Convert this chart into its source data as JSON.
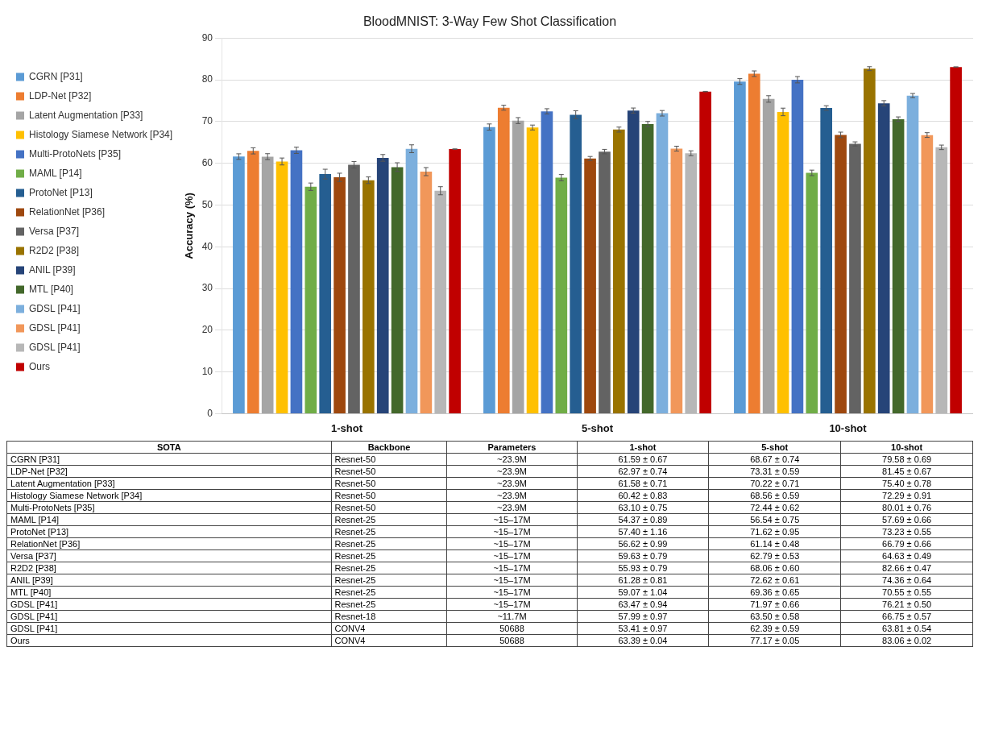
{
  "chart_data": {
    "type": "bar",
    "title": "BloodMNIST: 3-Way Few Shot Classification",
    "ylabel": "Accuracy (%)",
    "categories": [
      "1-shot",
      "5-shot",
      "10-shot"
    ],
    "ylim": [
      0,
      90
    ],
    "yticks": [
      0,
      10,
      20,
      30,
      40,
      50,
      60,
      70,
      80,
      90
    ],
    "grid": "y",
    "legend": "left",
    "annotations": [
      "SOTA",
      "Backbone",
      "Parameters",
      "1-shot",
      "5-shot",
      "10-shot",
      "CGRN [P31]",
      "Resnet-50",
      "~23.9M",
      "61.59 ± 0.67",
      "68.67 ± 0.74",
      "79.58 ± 0.69",
      "LDP-Net [P32]",
      "Resnet-50",
      "~23.9M",
      "62.97 ± 0.74",
      "73.31 ± 0.59",
      "81.45 ± 0.67",
      "Latent Augmentation [P33]",
      "Resnet-50",
      "~23.9M",
      "61.58 ± 0.71",
      "70.22 ± 0.71",
      "75.40 ± 0.78",
      "Histology Siamese Network [P34]",
      "Resnet-50",
      "~23.9M",
      "60.42 ± 0.83",
      "68.56 ± 0.59",
      "72.29 ± 0.91",
      "Multi-ProtoNets [P35]",
      "Resnet-50",
      "~23.9M",
      "63.10 ± 0.75",
      "72.44 ± 0.62",
      "80.01 ± 0.76",
      "MAML [P14]",
      "Resnet-25",
      "~15–17M",
      "54.37 ± 0.89",
      "56.54 ± 0.75",
      "57.69 ± 0.66",
      "ProtoNet [P13]",
      "Resnet-25",
      "~15–17M",
      "57.40 ± 1.16",
      "71.62 ± 0.95",
      "73.23 ± 0.55",
      "RelationNet [P36]",
      "Resnet-25",
      "~15–17M",
      "56.62 ± 0.99",
      "61.14 ± 0.48",
      "66.79 ± 0.66",
      "Versa [P37]",
      "Resnet-25",
      "~15–17M",
      "59.63 ± 0.79",
      "62.79 ± 0.53",
      "64.63 ± 0.49",
      "R2D2 [P38]",
      "Resnet-25",
      "~15–17M",
      "55.93 ± 0.79",
      "68.06 ± 0.60",
      "82.66 ± 0.47",
      "ANIL [P39]",
      "Resnet-25",
      "~15–17M",
      "61.28 ± 0.81",
      "72.62 ± 0.61",
      "74.36 ± 0.64",
      "MTL [P40]",
      "Resnet-25",
      "~15–17M",
      "59.07 ± 1.04",
      "69.36 ± 0.65",
      "70.55 ± 0.55",
      "GDSL [P41]",
      "Resnet-25",
      "~15–17M",
      "63.47 ± 0.94",
      "71.97 ± 0.66",
      "76.21 ± 0.50",
      "GDSL [P41]",
      "Resnet-18",
      "~11.7M",
      "57.99 ± 0.97",
      "63.50 ± 0.58",
      "66.75 ± 0.57",
      "GDSL [P41]",
      "CONV4",
      "50688",
      "53.41 ± 0.97",
      "62.39 ± 0.59",
      "63.81 ± 0.54",
      "Ours",
      "CONV4",
      "50688",
      "63.39 ± 0.04",
      "77.17 ± 0.05",
      "83.06 ± 0.02"
    ],
    "series": [
      {
        "name": "CGRN [P31]",
        "color": "#5b9bd5",
        "values": [
          61.59,
          68.67,
          79.58
        ],
        "errors": [
          0.67,
          0.74,
          0.69
        ]
      },
      {
        "name": "LDP-Net [P32]",
        "color": "#ed7d31",
        "values": [
          62.97,
          73.31,
          81.45
        ],
        "errors": [
          0.74,
          0.59,
          0.67
        ]
      },
      {
        "name": "Latent Augmentation [P33]",
        "color": "#a5a5a5",
        "values": [
          61.58,
          70.22,
          75.4
        ],
        "errors": [
          0.71,
          0.71,
          0.78
        ]
      },
      {
        "name": "Histology Siamese Network [P34]",
        "color": "#ffc000",
        "values": [
          60.42,
          68.56,
          72.29
        ],
        "errors": [
          0.83,
          0.59,
          0.91
        ]
      },
      {
        "name": "Multi-ProtoNets [P35]",
        "color": "#4472c4",
        "values": [
          63.1,
          72.44,
          80.01
        ],
        "errors": [
          0.75,
          0.62,
          0.76
        ]
      },
      {
        "name": "MAML [P14]",
        "color": "#70ad47",
        "values": [
          54.37,
          56.54,
          57.69
        ],
        "errors": [
          0.89,
          0.75,
          0.66
        ]
      },
      {
        "name": "ProtoNet [P13]",
        "color": "#255e91",
        "values": [
          57.4,
          71.62,
          73.23
        ],
        "errors": [
          1.16,
          0.95,
          0.55
        ]
      },
      {
        "name": "RelationNet [P36]",
        "color": "#9e480e",
        "values": [
          56.62,
          61.14,
          66.79
        ],
        "errors": [
          0.99,
          0.48,
          0.66
        ]
      },
      {
        "name": "Versa [P37]",
        "color": "#636363",
        "values": [
          59.63,
          62.79,
          64.63
        ],
        "errors": [
          0.79,
          0.53,
          0.49
        ]
      },
      {
        "name": "R2D2 [P38]",
        "color": "#997300",
        "values": [
          55.93,
          68.06,
          82.66
        ],
        "errors": [
          0.79,
          0.6,
          0.47
        ]
      },
      {
        "name": "ANIL [P39]",
        "color": "#264478",
        "values": [
          61.28,
          72.62,
          74.36
        ],
        "errors": [
          0.81,
          0.61,
          0.64
        ]
      },
      {
        "name": "MTL [P40]",
        "color": "#43682b",
        "values": [
          59.07,
          69.36,
          70.55
        ],
        "errors": [
          1.04,
          0.65,
          0.55
        ]
      },
      {
        "name": "GDSL [P41]",
        "color": "#7cafdd",
        "values": [
          63.47,
          71.97,
          76.21
        ],
        "errors": [
          0.94,
          0.66,
          0.5
        ]
      },
      {
        "name": "GDSL [P41]",
        "color": "#f1975a",
        "values": [
          57.99,
          63.5,
          66.75
        ],
        "errors": [
          0.97,
          0.58,
          0.57
        ]
      },
      {
        "name": "GDSL [P41]",
        "color": "#b7b7b7",
        "values": [
          53.41,
          62.39,
          63.81
        ],
        "errors": [
          0.97,
          0.59,
          0.54
        ]
      },
      {
        "name": "Ours",
        "color": "#c00000",
        "values": [
          63.39,
          77.17,
          83.06
        ],
        "errors": [
          0.04,
          0.05,
          0.02
        ]
      }
    ]
  }
}
